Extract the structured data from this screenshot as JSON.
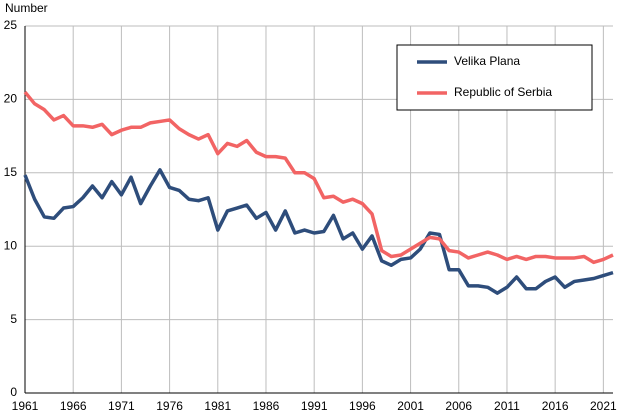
{
  "chart_data": {
    "type": "line",
    "y_label": "Number",
    "x": [
      1961,
      1962,
      1963,
      1964,
      1965,
      1966,
      1967,
      1968,
      1969,
      1970,
      1971,
      1972,
      1973,
      1974,
      1975,
      1976,
      1977,
      1978,
      1979,
      1980,
      1981,
      1982,
      1983,
      1984,
      1985,
      1986,
      1987,
      1988,
      1989,
      1990,
      1991,
      1992,
      1993,
      1994,
      1995,
      1996,
      1997,
      1998,
      1999,
      2000,
      2001,
      2002,
      2003,
      2004,
      2005,
      2006,
      2007,
      2008,
      2009,
      2010,
      2011,
      2012,
      2013,
      2014,
      2015,
      2016,
      2017,
      2018,
      2019,
      2020,
      2021,
      2022
    ],
    "series": [
      {
        "name": "Velika Plana",
        "color": "#2e4d7b",
        "values": [
          14.85,
          13.2,
          12.0,
          11.9,
          12.6,
          12.7,
          13.3,
          14.1,
          13.3,
          14.4,
          13.5,
          14.7,
          12.9,
          14.1,
          15.2,
          14.0,
          13.8,
          13.2,
          13.1,
          13.3,
          11.1,
          12.4,
          12.6,
          12.8,
          11.9,
          12.3,
          11.1,
          12.4,
          10.9,
          11.1,
          10.9,
          11.0,
          12.1,
          10.5,
          10.9,
          9.8,
          10.7,
          9.0,
          8.7,
          9.1,
          9.2,
          9.8,
          10.9,
          10.8,
          8.4,
          8.4,
          7.3,
          7.3,
          7.2,
          6.8,
          7.2,
          7.9,
          7.1,
          7.1,
          7.6,
          7.9,
          7.2,
          7.6,
          7.7,
          7.8,
          8.0,
          8.2
        ]
      },
      {
        "name": "Republic of Serbia",
        "color": "#f26464",
        "values": [
          20.5,
          19.7,
          19.3,
          18.6,
          18.9,
          18.2,
          18.2,
          18.1,
          18.3,
          17.6,
          17.9,
          18.1,
          18.1,
          18.4,
          18.5,
          18.6,
          18.0,
          17.6,
          17.3,
          17.6,
          16.3,
          17.0,
          16.8,
          17.2,
          16.4,
          16.1,
          16.1,
          16.0,
          15.0,
          15.0,
          14.6,
          13.3,
          13.4,
          13.0,
          13.2,
          12.9,
          12.2,
          9.7,
          9.3,
          9.4,
          9.8,
          10.2,
          10.6,
          10.5,
          9.7,
          9.6,
          9.2,
          9.4,
          9.6,
          9.4,
          9.1,
          9.3,
          9.1,
          9.3,
          9.3,
          9.2,
          9.2,
          9.2,
          9.3,
          8.9,
          9.1,
          9.4
        ]
      }
    ],
    "xlim": [
      1961,
      2022
    ],
    "xticks": [
      1961,
      1966,
      1971,
      1976,
      1981,
      1986,
      1991,
      1996,
      2001,
      2006,
      2011,
      2016,
      2021
    ],
    "ylim": [
      0,
      25
    ],
    "yticks": [
      0,
      5,
      10,
      15,
      20,
      25
    ],
    "grid": true,
    "legend": "upper right"
  }
}
